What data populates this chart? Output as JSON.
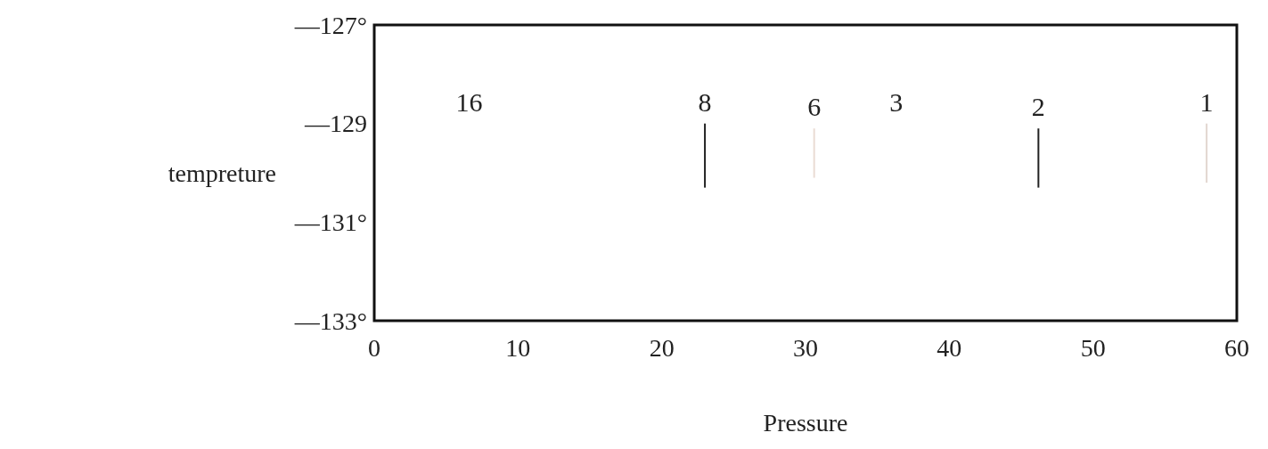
{
  "chart_data": {
    "type": "line",
    "xlabel": "Pressure",
    "ylabel": "tempreture",
    "xlim": [
      0,
      60
    ],
    "xticks": [
      0,
      10,
      20,
      30,
      40,
      50,
      60
    ],
    "ylim": [
      -133,
      -127
    ],
    "yticks": [
      {
        "value": -127,
        "label": "—127°"
      },
      {
        "value": -129,
        "label": "—129"
      },
      {
        "value": -131,
        "label": "—131°"
      },
      {
        "value": -133,
        "label": "—133°"
      }
    ],
    "series": [
      {
        "color": "#222222",
        "x": [
          23,
          23
        ],
        "values": [
          -129,
          -130.3
        ]
      },
      {
        "color": "#eadcd4",
        "x": [
          30.6,
          30.6
        ],
        "values": [
          -129.1,
          -130.1
        ]
      },
      {
        "color": "#222222",
        "x": [
          46.2,
          46.2
        ],
        "values": [
          -129.1,
          -130.3
        ]
      },
      {
        "color": "#e2d6d0",
        "x": [
          57.9,
          57.9
        ],
        "values": [
          -129,
          -130.2
        ]
      }
    ],
    "annotations": [
      "16",
      {
        "text": "8",
        "x": 23,
        "y": -129
      },
      {
        "text": "6",
        "x": 30.6,
        "y": -129.1
      },
      "3",
      {
        "text": "2",
        "x": 46.2,
        "y": -129.1
      },
      {
        "text": "1",
        "x": 57.9,
        "y": -129
      }
    ]
  }
}
